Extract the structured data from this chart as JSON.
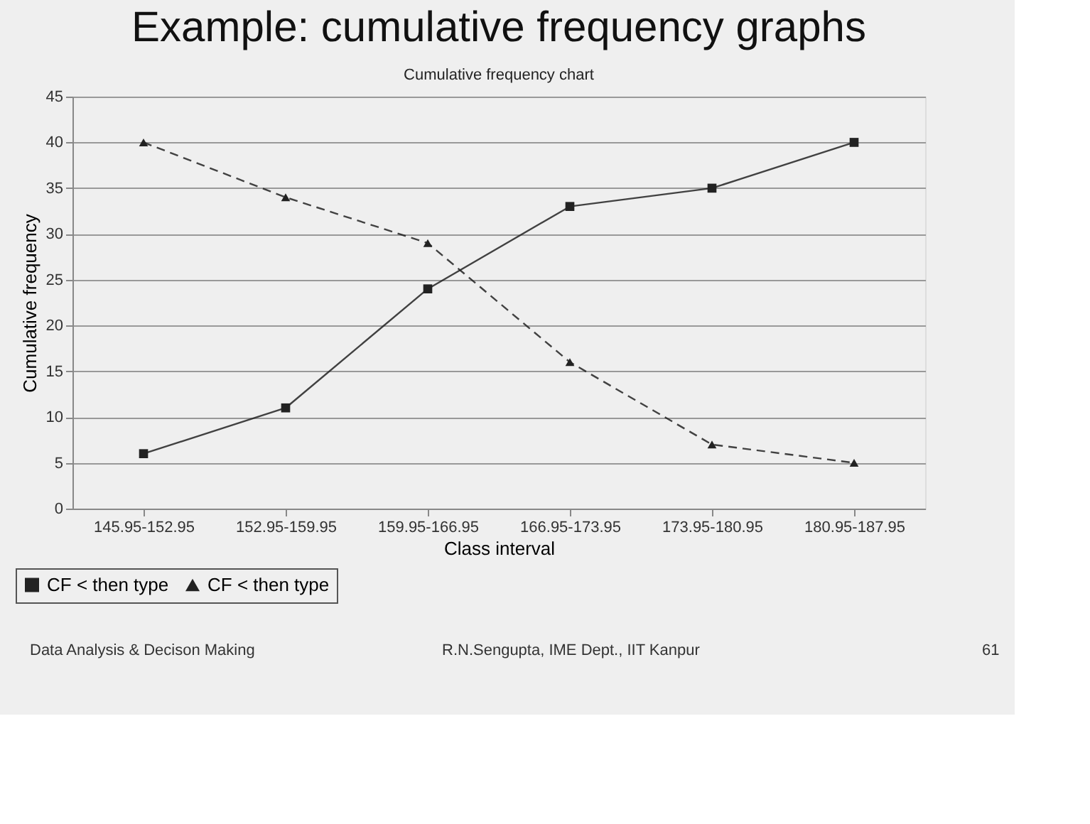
{
  "chart_data": {
    "type": "line",
    "title": "Example: cumulative frequency graphs",
    "subtitle": "Cumulative frequency chart",
    "xlabel": "Class interval",
    "ylabel": "Cumulative frequency",
    "categories": [
      "145.95-152.95",
      "152.95-159.95",
      "159.95-166.95",
      "166.95-173.95",
      "173.95-180.95",
      "180.95-187.95"
    ],
    "series": [
      {
        "name": "CF < then type",
        "color": "#222222",
        "values": [
          6,
          11,
          24,
          33,
          35,
          40
        ],
        "marker": "square",
        "line_style": "solid"
      },
      {
        "name": "CF < then type",
        "color": "#222222",
        "values": [
          40,
          34,
          29,
          16,
          7,
          5
        ],
        "marker": "triangle",
        "line_style": "dashed"
      }
    ],
    "ylim": [
      0,
      45
    ],
    "yticks": [
      0,
      5,
      10,
      15,
      20,
      25,
      30,
      35,
      40,
      45
    ],
    "grid": "y",
    "legend": "bottom left",
    "annotations": [
      "Data Analysis & Decison Making",
      "R.N.Sengupta, IME Dept., IIT Kanpur",
      "61"
    ]
  }
}
